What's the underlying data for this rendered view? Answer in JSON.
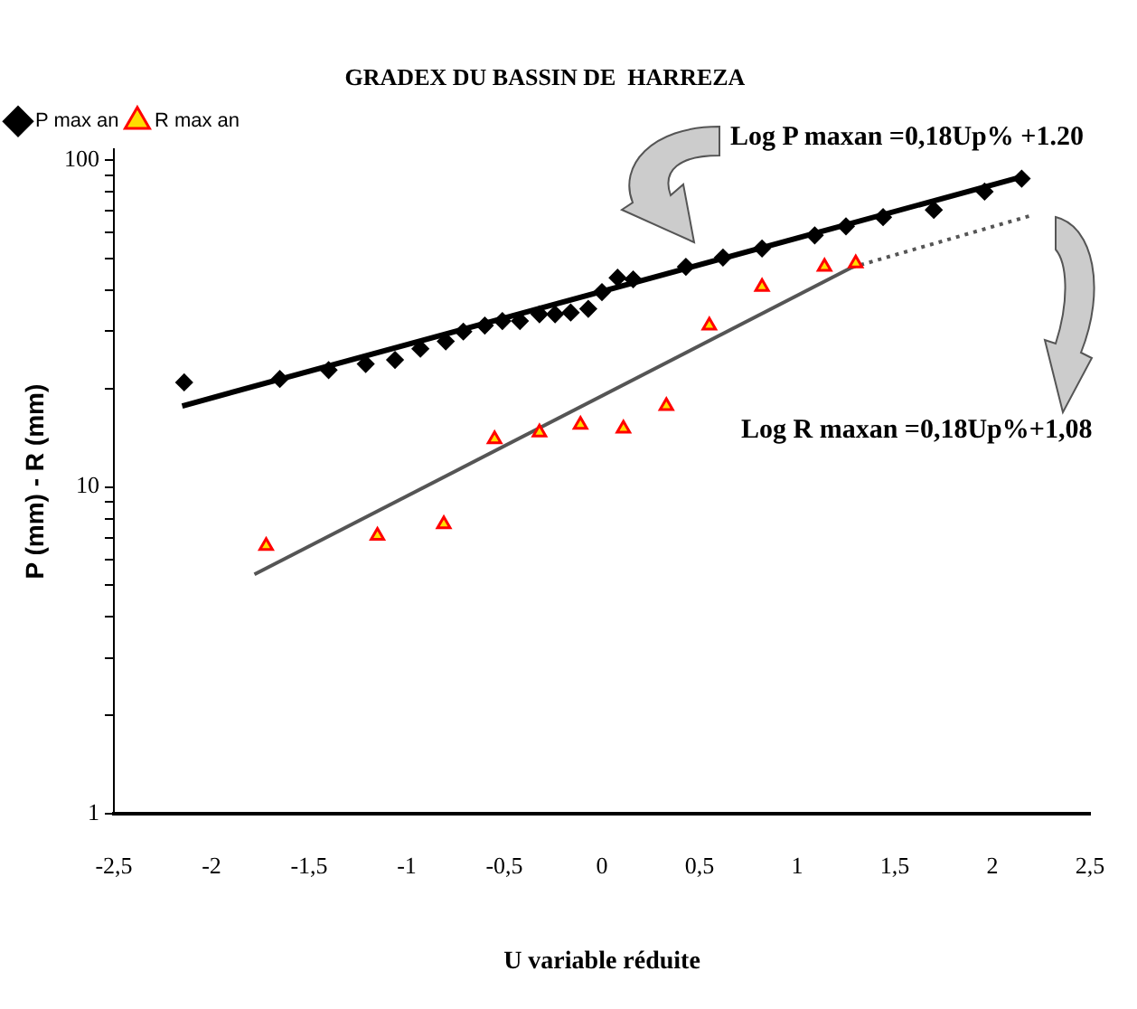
{
  "chart_data": {
    "type": "scatter",
    "title": "GRADEX DU BASSIN DE  HARREZA",
    "xlabel": "U variable réduite",
    "ylabel": "P (mm) - R (mm)",
    "annotations": [
      "Log P maxan =0,18Up% +1.20",
      "Log R maxan =0,18Up%+1,08"
    ],
    "log": "y",
    "legend": "top left",
    "grid": false,
    "xlim": [
      -2.5,
      2.5
    ],
    "xticks": [
      {
        "value": -2.5,
        "label": "-2,5"
      },
      -2,
      {
        "value": -1.5,
        "label": "-1,5"
      },
      -1,
      {
        "value": -0.5,
        "label": "-0,5"
      },
      0,
      {
        "value": 0.5,
        "label": "0,5"
      },
      1,
      {
        "value": 1.5,
        "label": "1,5"
      },
      2,
      {
        "value": 2.5,
        "label": "2,5"
      }
    ],
    "ylim": [
      1,
      108
    ],
    "yticks": [
      1,
      {
        "value": 2,
        "label": null
      },
      {
        "value": 3,
        "label": null
      },
      {
        "value": 4,
        "label": null
      },
      {
        "value": 5,
        "label": null
      },
      {
        "value": 6,
        "label": null
      },
      {
        "value": 7,
        "label": null
      },
      {
        "value": 8,
        "label": null
      },
      {
        "value": 9,
        "label": null
      },
      10,
      {
        "value": 20,
        "label": null
      },
      {
        "value": 30,
        "label": null
      },
      {
        "value": 40,
        "label": null
      },
      {
        "value": 50,
        "label": null
      },
      {
        "value": 60,
        "label": null
      },
      {
        "value": 70,
        "label": null
      },
      {
        "value": 80,
        "label": null
      },
      {
        "value": 90,
        "label": null
      },
      100
    ],
    "series": [
      {
        "name": "P max an",
        "marker": "diamond",
        "color": "#000000",
        "x": [
          -2.14,
          -1.65,
          -1.4,
          -1.21,
          -1.06,
          -0.93,
          -0.8,
          -0.71,
          -0.6,
          -0.51,
          -0.42,
          -0.32,
          -0.24,
          -0.16,
          -0.07,
          0,
          0.08,
          0.16,
          0.43,
          0.62,
          0.82,
          1.09,
          1.25,
          1.44,
          1.7,
          1.96,
          2.15
        ],
        "values": [
          20.9,
          21.4,
          22.8,
          23.8,
          24.5,
          26.5,
          27.9,
          29.9,
          31.2,
          32.2,
          32.2,
          33.8,
          33.8,
          34.2,
          35.1,
          39.5,
          43.7,
          43.2,
          47.2,
          50.4,
          53.7,
          58.9,
          62.8,
          67,
          70.5,
          80.2,
          87.9
        ]
      },
      {
        "name": "R max an",
        "marker": "triangle",
        "color": "#ff0000",
        "x": [
          -1.72,
          -1.15,
          -0.81,
          -0.55,
          -0.32,
          -0.11,
          0.11,
          0.33,
          0.55,
          0.82,
          1.14,
          1.3
        ],
        "values": [
          6.6,
          7.1,
          7.7,
          14,
          14.7,
          15.5,
          15.1,
          17.7,
          31.2,
          41,
          47.2,
          48.4
        ]
      },
      {
        "type": "line",
        "marker": "none",
        "line_style": "solid",
        "color": "#000000",
        "x": [
          -2.15,
          2.15
        ],
        "values": [
          17.7,
          89
        ]
      },
      {
        "type": "line",
        "marker": "none",
        "line_style": "solid",
        "color": "#555555",
        "x": [
          -1.78,
          1.28
        ],
        "values": [
          5.4,
          47
        ]
      },
      {
        "type": "line",
        "marker": "none",
        "line_style": "dotted",
        "color": "#555555",
        "x": [
          1.28,
          2.2
        ],
        "values": [
          47,
          67.8
        ]
      }
    ]
  }
}
